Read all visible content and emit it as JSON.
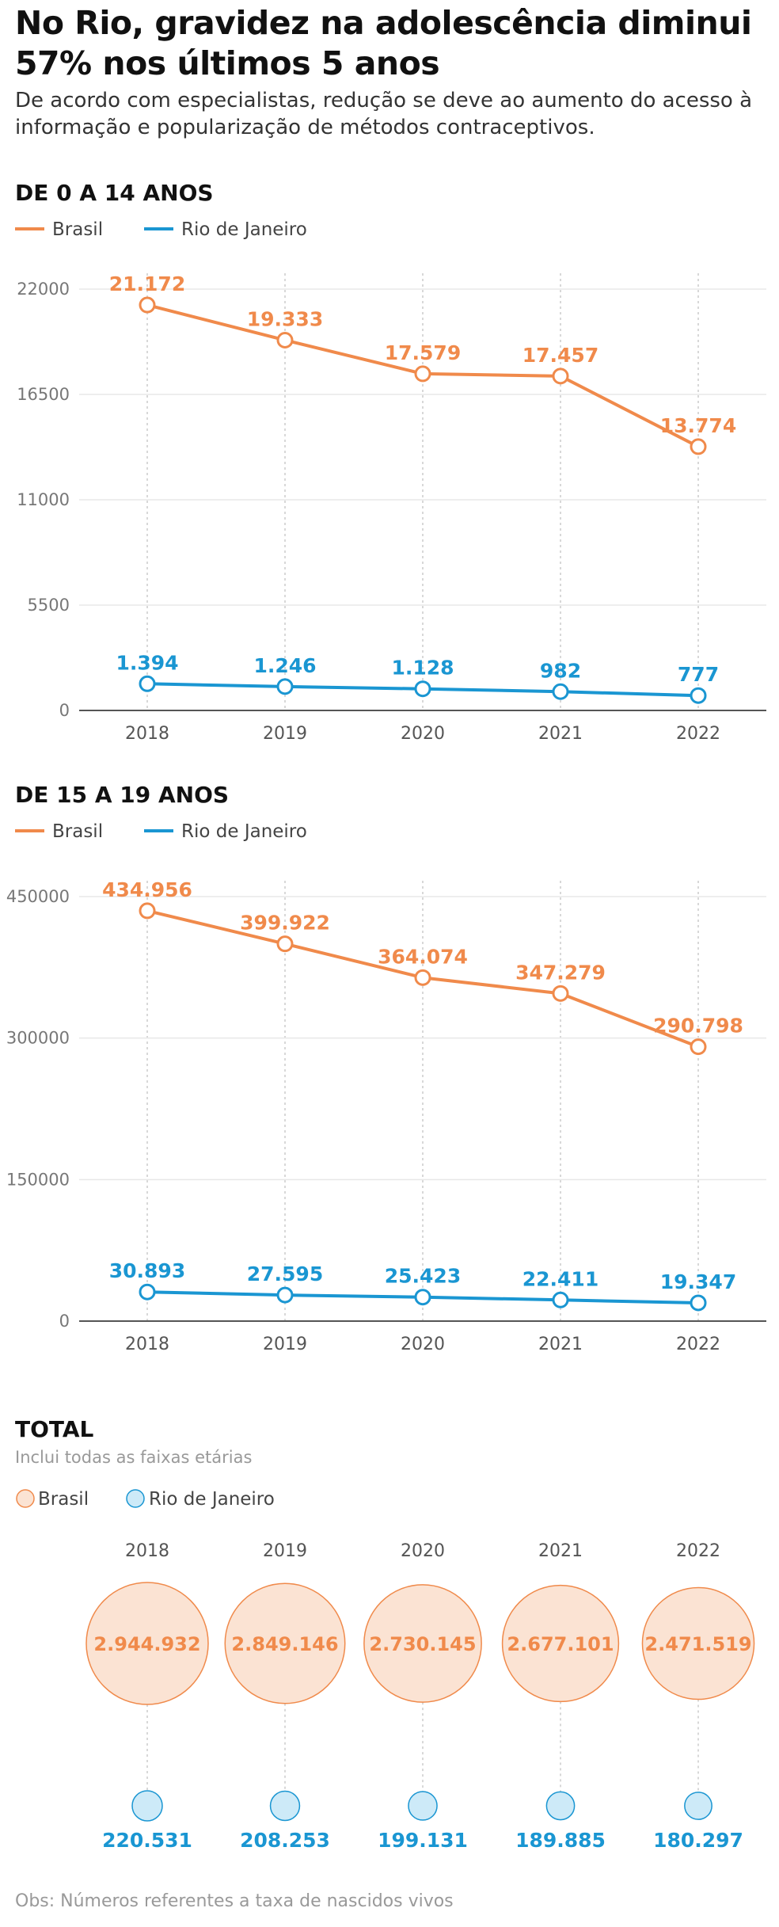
{
  "header": {
    "title": "No Rio, gravidez na adolescência diminui 57% nos últimos 5 anos",
    "subtitle": "De acordo com especialistas, redução se deve ao aumento do acesso à informação e popularização de métodos contraceptivos."
  },
  "legend": {
    "brasil": "Brasil",
    "rio": "Rio de Janeiro"
  },
  "colors": {
    "brasil": "#f08a4b",
    "rio": "#1a96d2",
    "bubble_brasil_fill": "#fbe3d3",
    "bubble_rio_fill": "#cdeaf8"
  },
  "chart_data": [
    {
      "type": "line",
      "title": "DE 0 A 14 ANOS",
      "categories": [
        "2018",
        "2019",
        "2020",
        "2021",
        "2022"
      ],
      "ylim": [
        0,
        22000
      ],
      "yticks": [
        0,
        5500,
        11000,
        16500,
        22000
      ],
      "ytick_labels": [
        "0",
        "5500",
        "11000",
        "16500",
        "22000"
      ],
      "grid": true,
      "legend_position": "top-left",
      "series": [
        {
          "name": "Brasil",
          "values": [
            21172,
            19333,
            17579,
            17457,
            13774
          ],
          "labels": [
            "21.172",
            "19.333",
            "17.579",
            "17.457",
            "13.774"
          ]
        },
        {
          "name": "Rio de Janeiro",
          "values": [
            1394,
            1246,
            1128,
            982,
            777
          ],
          "labels": [
            "1.394",
            "1.246",
            "1.128",
            "982",
            "777"
          ]
        }
      ]
    },
    {
      "type": "line",
      "title": "DE 15 A 19 ANOS",
      "categories": [
        "2018",
        "2019",
        "2020",
        "2021",
        "2022"
      ],
      "ylim": [
        0,
        450000
      ],
      "yticks": [
        0,
        150000,
        300000,
        450000
      ],
      "ytick_labels": [
        "0",
        "150000",
        "300000",
        "450000"
      ],
      "grid": true,
      "legend_position": "top-left",
      "series": [
        {
          "name": "Brasil",
          "values": [
            434956,
            399922,
            364074,
            347279,
            290798
          ],
          "labels": [
            "434.956",
            "399.922",
            "364.074",
            "347.279",
            "290.798"
          ]
        },
        {
          "name": "Rio de Janeiro",
          "values": [
            30893,
            27595,
            25423,
            22411,
            19347
          ],
          "labels": [
            "30.893",
            "27.595",
            "25.423",
            "22.411",
            "19.347"
          ]
        }
      ]
    },
    {
      "type": "scatter",
      "title": "TOTAL",
      "subtitle": "Inclui todas as faixas etárias",
      "categories": [
        "2018",
        "2019",
        "2020",
        "2021",
        "2022"
      ],
      "legend_position": "top-left",
      "series": [
        {
          "name": "Brasil",
          "values": [
            2944932,
            2849146,
            2730145,
            2677101,
            2471519
          ],
          "labels": [
            "2.944.932",
            "2.849.146",
            "2.730.145",
            "2.677.101",
            "2.471.519"
          ]
        },
        {
          "name": "Rio de Janeiro",
          "values": [
            220531,
            208253,
            199131,
            189885,
            180297
          ],
          "labels": [
            "220.531",
            "208.253",
            "199.131",
            "189.885",
            "180.297"
          ]
        }
      ]
    }
  ],
  "footer": {
    "note": "Obs: Números referentes a taxa de nascidos vivos"
  }
}
